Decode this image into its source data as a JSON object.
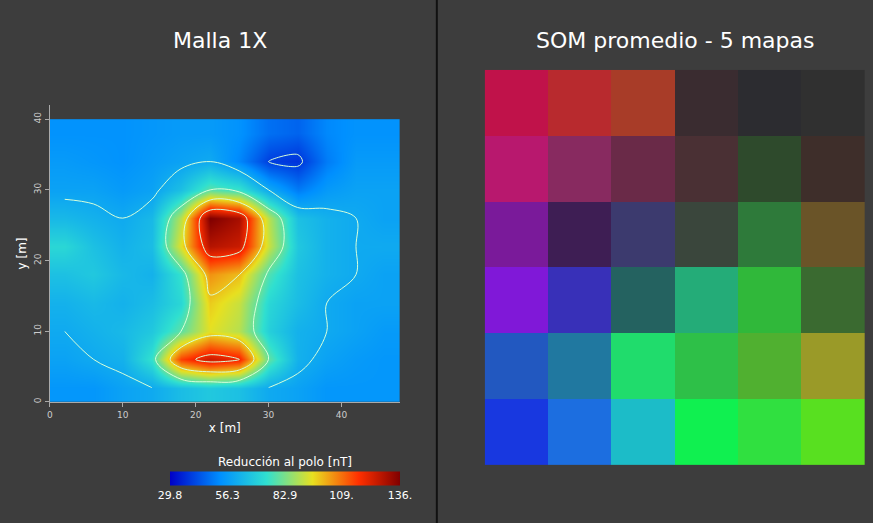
{
  "chart_data": [
    {
      "type": "heatmap",
      "title": "Malla 1X",
      "x_label": "x [m]",
      "y_label": "y [m]",
      "x": [
        2,
        6,
        10,
        14,
        18,
        22,
        26,
        30,
        34,
        38,
        42,
        46
      ],
      "y": [
        2,
        6,
        10,
        14,
        18,
        22,
        26,
        30,
        34,
        38
      ],
      "z": [
        [
          55,
          55,
          58,
          60,
          65,
          68,
          66,
          60,
          58,
          55,
          55,
          55
        ],
        [
          58,
          60,
          62,
          75,
          115,
          125,
          120,
          80,
          62,
          58,
          56,
          55
        ],
        [
          60,
          62,
          64,
          68,
          80,
          95,
          90,
          70,
          62,
          60,
          58,
          56
        ],
        [
          62,
          64,
          62,
          65,
          72,
          98,
          92,
          72,
          65,
          60,
          58,
          58
        ],
        [
          66,
          68,
          64,
          62,
          75,
          105,
          100,
          78,
          66,
          62,
          60,
          58
        ],
        [
          72,
          66,
          62,
          65,
          95,
          128,
          125,
          92,
          68,
          62,
          60,
          60
        ],
        [
          64,
          62,
          60,
          64,
          90,
          136,
          130,
          90,
          66,
          62,
          60,
          58
        ],
        [
          58,
          58,
          56,
          58,
          66,
          80,
          76,
          60,
          50,
          56,
          58,
          58
        ],
        [
          56,
          55,
          54,
          56,
          58,
          60,
          52,
          40,
          38,
          50,
          56,
          56
        ],
        [
          54,
          54,
          54,
          55,
          56,
          56,
          54,
          48,
          46,
          52,
          54,
          54
        ]
      ],
      "xlim": [
        0,
        48
      ],
      "ylim": [
        0,
        42
      ],
      "xticks": [
        0,
        10,
        20,
        30,
        40
      ],
      "yticks": [
        0,
        10,
        20,
        30,
        40
      ],
      "grid": false,
      "colorbar": {
        "title": "Reducción al polo [nT]",
        "range": [
          29.8,
          136
        ],
        "ticks": [
          29.8,
          56.3,
          82.9,
          {
            "value": 109,
            "label": "109."
          },
          {
            "value": 136,
            "label": "136."
          }
        ]
      }
    },
    {
      "type": "color_grid",
      "title": "SOM promedio - 5 mapas",
      "tick_labels": false,
      "colors": [
        [
          "#c0124a",
          "#b82a2e",
          "#a83c28",
          "#3a2c30",
          "#2c2c30",
          "#303030"
        ],
        [
          "#b8186e",
          "#882a60",
          "#6a2a48",
          "#4a3034",
          "#2e4a2c",
          "#3e2e2a"
        ],
        [
          "#7a1a9a",
          "#3e1e54",
          "#3c3a6e",
          "#3a463c",
          "#2e7a3a",
          "#6a5428"
        ],
        [
          "#8018d8",
          "#3830b8",
          "#246260",
          "#24ac78",
          "#30b83a",
          "#3a6a30"
        ],
        [
          "#2258c0",
          "#2078a0",
          "#20dc6c",
          "#2ec048",
          "#50b030",
          "#9a9a28"
        ],
        [
          "#1838e0",
          "#1c6ee0",
          "#1cbcc8",
          "#10f050",
          "#30e040",
          "#58e020"
        ]
      ]
    }
  ]
}
